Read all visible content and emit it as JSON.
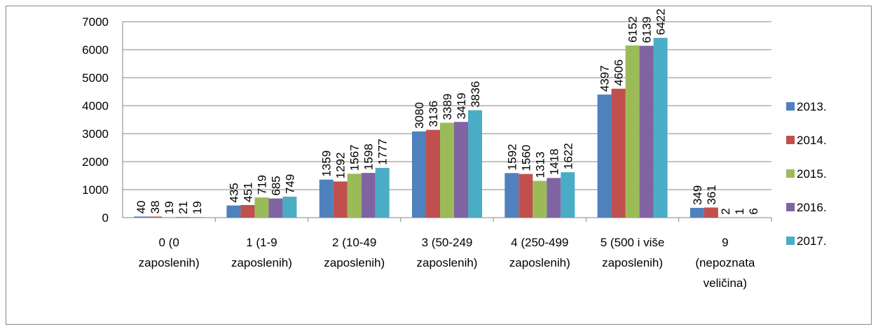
{
  "chart_data": {
    "type": "bar",
    "title": "",
    "xlabel": "",
    "ylabel": "",
    "ylim": [
      0,
      7000
    ],
    "yticks": [
      0,
      1000,
      2000,
      3000,
      4000,
      5000,
      6000,
      7000
    ],
    "grid": true,
    "legend_position": "right",
    "categories": [
      [
        "0 (0",
        "zaposlenih)"
      ],
      [
        "1 (1-9",
        "zaposlenih)"
      ],
      [
        "2 (10-49",
        "zaposlenih)"
      ],
      [
        "3 (50-249",
        "zaposlenih)"
      ],
      [
        "4 (250-499",
        "zaposlenih)"
      ],
      [
        "5 (500 i više",
        "zaposlenih)"
      ],
      [
        "9",
        "(nepoznata",
        "veličina)"
      ]
    ],
    "series": [
      {
        "name": "2013.",
        "color": "#4f81bd",
        "values": [
          40,
          435,
          1359,
          3080,
          1592,
          4397,
          349
        ]
      },
      {
        "name": "2014.",
        "color": "#c0504d",
        "values": [
          38,
          451,
          1292,
          3136,
          1560,
          4606,
          361
        ]
      },
      {
        "name": "2015.",
        "color": "#9bbb59",
        "values": [
          19,
          719,
          1567,
          3389,
          1313,
          6152,
          2
        ]
      },
      {
        "name": "2016.",
        "color": "#8064a2",
        "values": [
          21,
          685,
          1598,
          3419,
          1418,
          6139,
          1
        ]
      },
      {
        "name": "2017.",
        "color": "#4bacc6",
        "values": [
          19,
          749,
          1777,
          3836,
          1622,
          6422,
          6
        ]
      }
    ]
  }
}
